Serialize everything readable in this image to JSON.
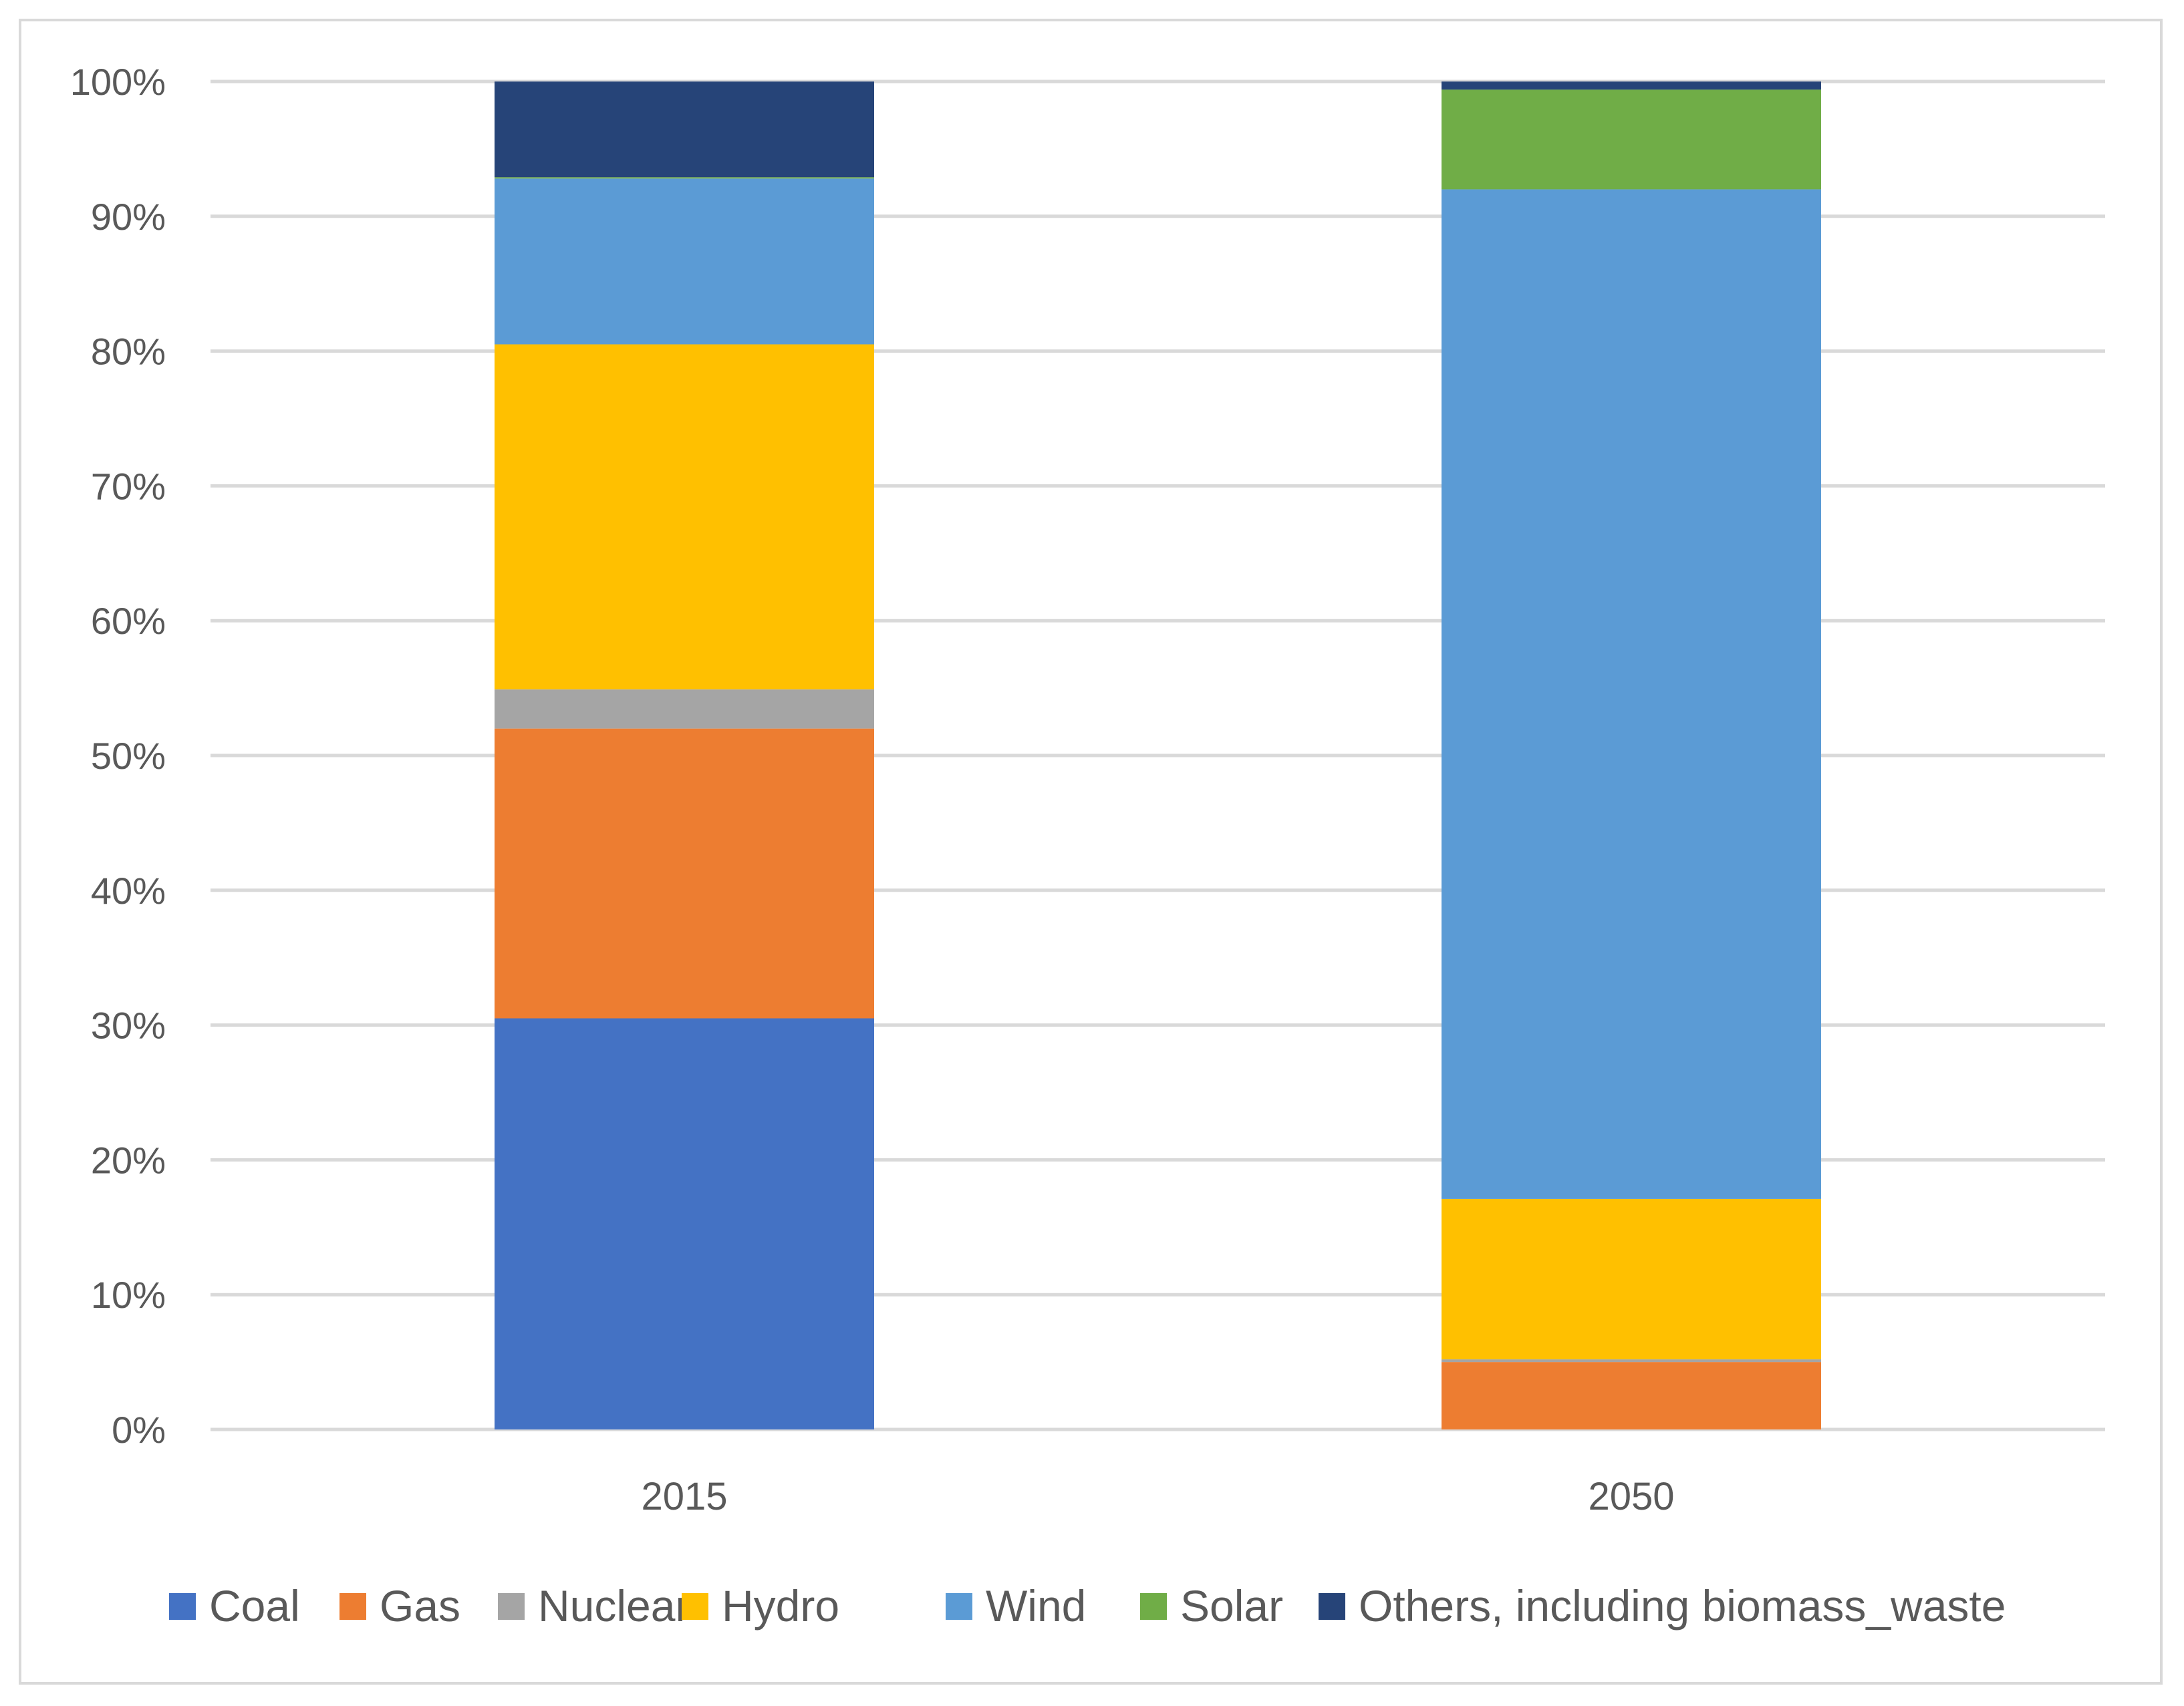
{
  "chart_data": {
    "type": "bar",
    "stacked": true,
    "normalized_percent": true,
    "categories": [
      "2015",
      "2050"
    ],
    "ylim": [
      0,
      100
    ],
    "yticks": [
      "0%",
      "10%",
      "20%",
      "30%",
      "40%",
      "50%",
      "60%",
      "70%",
      "80%",
      "90%",
      "100%"
    ],
    "grid": true,
    "legend_position": "bottom",
    "series": [
      {
        "name": "Coal",
        "color": "#4472C4",
        "values": [
          30.5,
          0.0
        ]
      },
      {
        "name": "Gas",
        "color": "#ED7D31",
        "values": [
          21.5,
          5.0
        ]
      },
      {
        "name": "Nuclear",
        "color": "#A5A5A5",
        "values": [
          2.9,
          0.2
        ]
      },
      {
        "name": "Hydro",
        "color": "#FFC000",
        "values": [
          25.6,
          11.9
        ]
      },
      {
        "name": "Wind",
        "color": "#5B9BD5",
        "values": [
          12.3,
          74.9
        ]
      },
      {
        "name": "Solar",
        "color": "#70AD47",
        "values": [
          0.1,
          7.4
        ]
      },
      {
        "name": "Others, including biomass_waste",
        "color": "#264478",
        "values": [
          7.1,
          0.6
        ]
      }
    ]
  }
}
